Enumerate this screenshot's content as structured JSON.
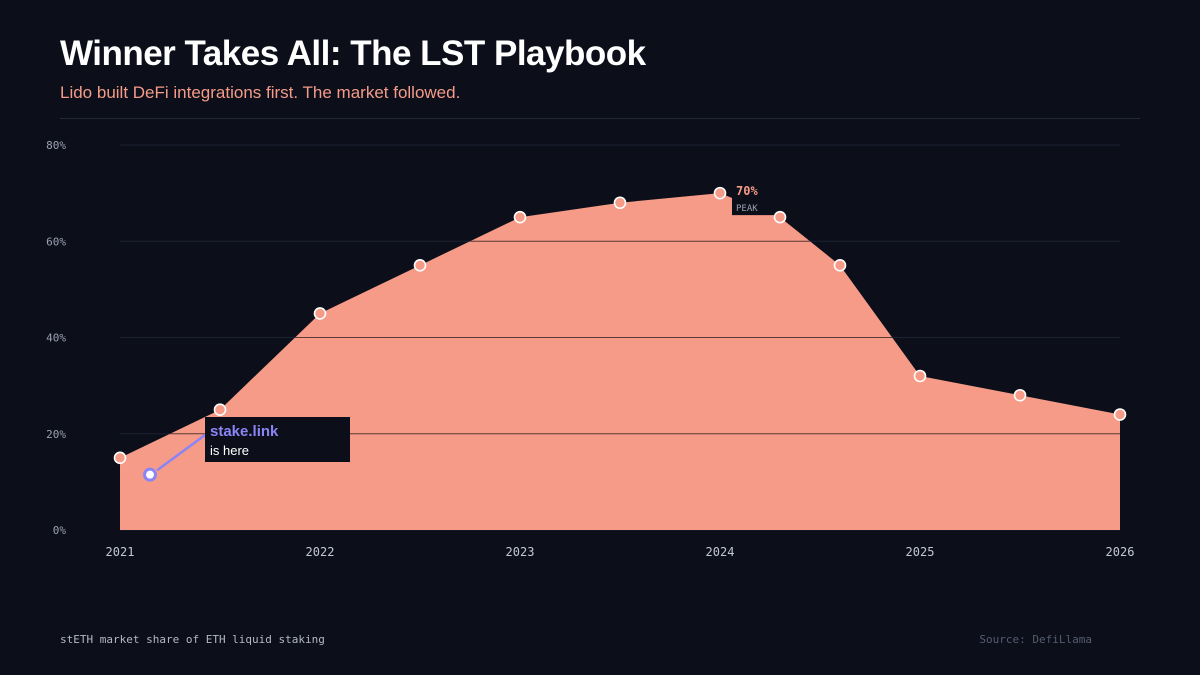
{
  "header": {
    "title": "Winner Takes All: The LST Playbook",
    "subtitle": "Lido built DeFi integrations first. The market followed."
  },
  "footer": {
    "caption": "stETH market share of ETH liquid staking",
    "source": "Source: DefiLlama"
  },
  "colors": {
    "background": "#0c0f1a",
    "area_fill": "#f59b88",
    "accent_purple": "#8b84f5",
    "point_fill": "#f59b88",
    "point_stroke": "#ffffff"
  },
  "chart_data": {
    "type": "area",
    "title": "Winner Takes All: The LST Playbook",
    "subtitle": "Lido built DeFi integrations first. The market followed.",
    "xlabel": "",
    "ylabel": "",
    "series": [
      {
        "name": "stETH market share",
        "x": [
          2021.0,
          2021.5,
          2022.0,
          2022.5,
          2023.0,
          2023.5,
          2024.0,
          2024.3,
          2024.6,
          2025.0,
          2025.5,
          2026.0
        ],
        "values": [
          15,
          25,
          45,
          55,
          65,
          68,
          70,
          65,
          55,
          32,
          28,
          24
        ]
      }
    ],
    "xlim": [
      2021,
      2026
    ],
    "ylim": [
      0,
      80
    ],
    "x_ticks": [
      {
        "value": 2021,
        "label": "2021"
      },
      {
        "value": 2022,
        "label": "2022"
      },
      {
        "value": 2023,
        "label": "2023"
      },
      {
        "value": 2024,
        "label": "2024"
      },
      {
        "value": 2025,
        "label": "2025"
      },
      {
        "value": 2026,
        "label": "2026"
      }
    ],
    "y_ticks": [
      {
        "value": 0,
        "label": "0%"
      },
      {
        "value": 20,
        "label": "20%"
      },
      {
        "value": 40,
        "label": "40%"
      },
      {
        "value": 60,
        "label": "60%"
      },
      {
        "value": 80,
        "label": "80%"
      }
    ],
    "grid": true,
    "annotations": {
      "peak": {
        "x": 2024.0,
        "y": 70,
        "value_label": "70%",
        "caption": "PEAK"
      },
      "marker": {
        "x": 2021.15,
        "y": 11.5,
        "title": "stake.link",
        "text": "is here"
      }
    }
  }
}
